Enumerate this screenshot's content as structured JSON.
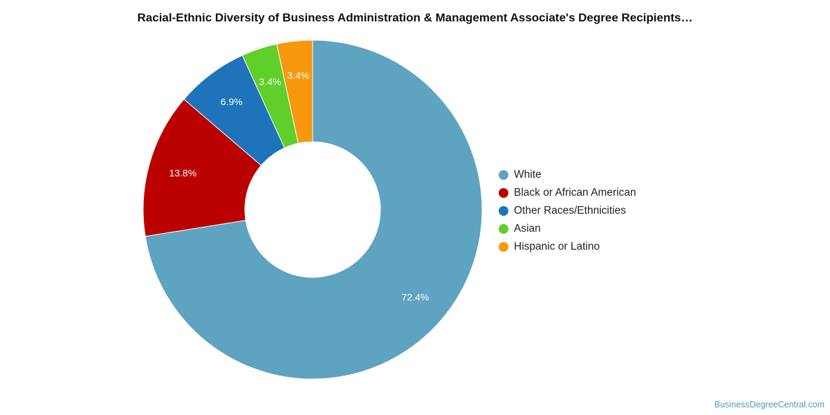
{
  "chart_data": {
    "type": "pie",
    "title": "Racial-Ethnic Diversity of Business Administration & Management Associate's Degree Recipients…",
    "legend_position": "right",
    "categories": [
      "White",
      "Black or African American",
      "Other Races/Ethnicities",
      "Asian",
      "Hispanic or Latino"
    ],
    "values": [
      72.4,
      13.8,
      6.9,
      3.4,
      3.4
    ],
    "value_labels": [
      "72.4%",
      "13.8%",
      "6.9%",
      "3.4%",
      "3.4%"
    ],
    "colors": [
      "#5ea3c0",
      "#bb0000",
      "#1f73ba",
      "#5fcf2a",
      "#f7980e"
    ],
    "donut": true
  },
  "source": "BusinessDegreeCentral.com"
}
